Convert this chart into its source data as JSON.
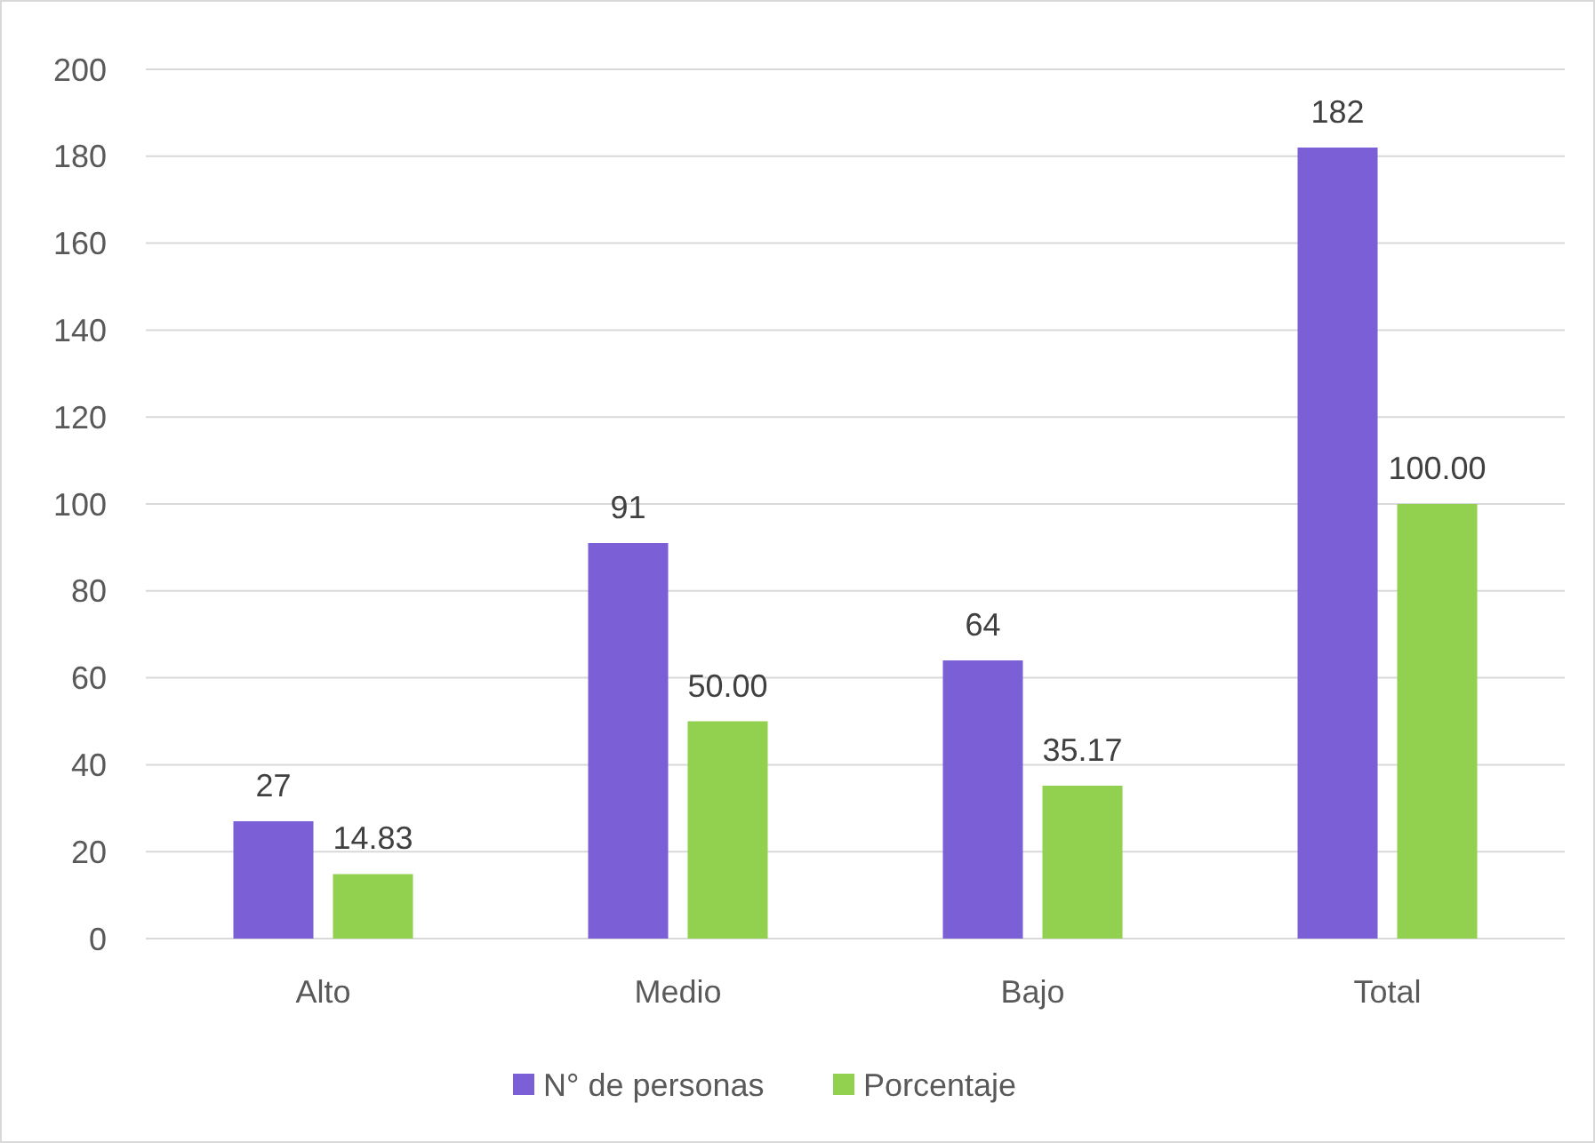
{
  "chart_data": {
    "type": "bar",
    "categories": [
      "Alto",
      "Medio",
      "Bajo",
      "Total"
    ],
    "series": [
      {
        "name": "N° de personas",
        "color": "#7b5fd6",
        "values": [
          27,
          91,
          64,
          182
        ],
        "value_labels": [
          "27",
          "91",
          "64",
          "182"
        ]
      },
      {
        "name": "Porcentaje",
        "color": "#92d050",
        "values": [
          14.83,
          50,
          35.17,
          100
        ],
        "value_labels": [
          "14.83",
          "50.00",
          "35.17",
          "100.00"
        ]
      }
    ],
    "ylim": [
      0,
      200
    ],
    "yticks": [
      0,
      20,
      40,
      60,
      80,
      100,
      120,
      140,
      160,
      180,
      200
    ],
    "grid": "y",
    "legend": "bottom"
  }
}
